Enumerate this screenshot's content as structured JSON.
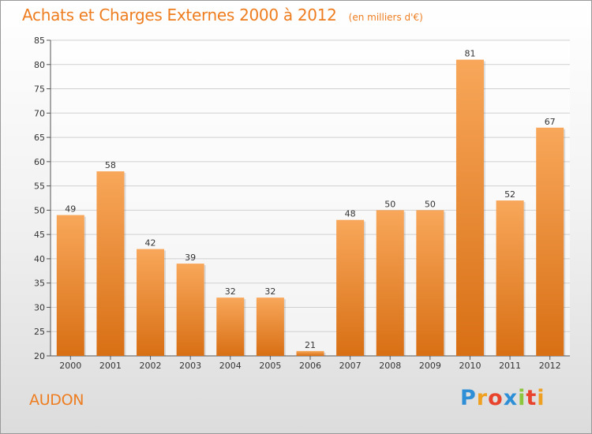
{
  "header": {
    "title": "Achats et Charges Externes 2000 à 2012",
    "unit": "(en milliers d'€)"
  },
  "place": "AUDON",
  "logo": {
    "text": "Proxiti",
    "letters": [
      {
        "ch": "P",
        "color": "#2f8fd6"
      },
      {
        "ch": "r",
        "color": "#f0a020"
      },
      {
        "ch": "o",
        "color": "#e8432d"
      },
      {
        "ch": "x",
        "color": "#2f8fd6"
      },
      {
        "ch": "i",
        "color": "#8cc63f"
      },
      {
        "ch": "t",
        "color": "#e8432d"
      },
      {
        "ch": "i",
        "color": "#f0a020"
      }
    ]
  },
  "colors": {
    "bar_top": "#f8a75a",
    "bar_bottom": "#d86f14",
    "axis": "#555555",
    "grid": "#d0d0d0"
  },
  "chart_data": {
    "type": "bar",
    "title": "Achats et Charges Externes 2000 à 2012",
    "subtitle": "(en milliers d'€)",
    "categories": [
      "2000",
      "2001",
      "2002",
      "2003",
      "2004",
      "2005",
      "2006",
      "2007",
      "2008",
      "2009",
      "2010",
      "2011",
      "2012"
    ],
    "values": [
      49,
      58,
      42,
      39,
      32,
      32,
      21,
      48,
      50,
      50,
      81,
      52,
      67
    ],
    "ylim": [
      20,
      85
    ],
    "yticks": [
      20,
      25,
      30,
      35,
      40,
      45,
      50,
      55,
      60,
      65,
      70,
      75,
      80,
      85
    ],
    "grid": true,
    "xlabel": "",
    "ylabel": ""
  }
}
